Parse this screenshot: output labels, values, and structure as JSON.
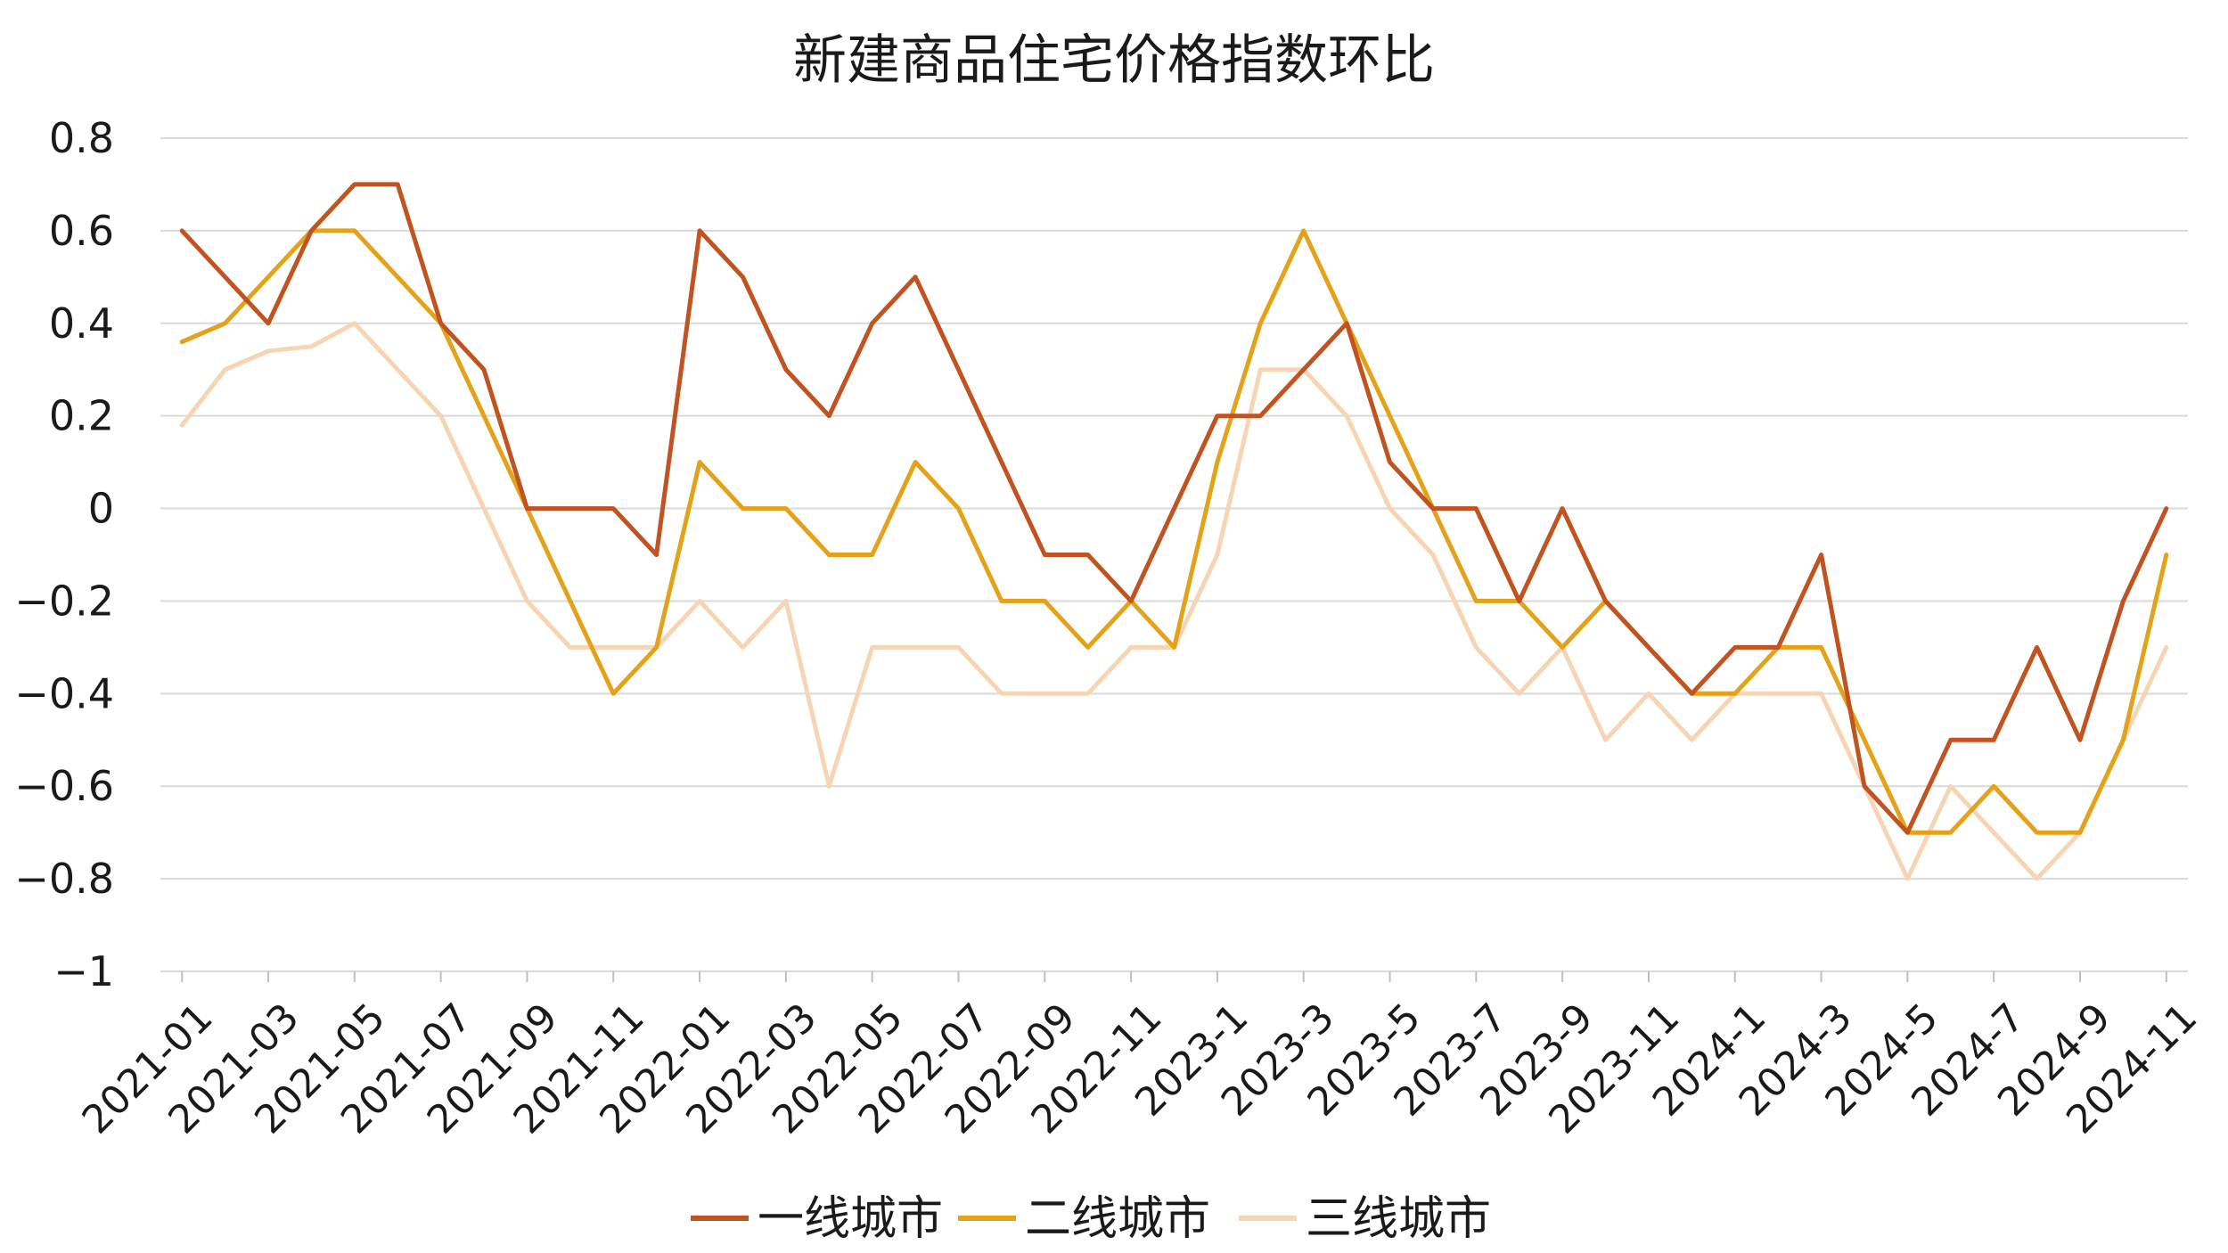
{
  "chart_data": {
    "type": "line",
    "title": "新建商品住宅价格指数环比",
    "xlabel": "",
    "ylabel": "",
    "ylim": [
      -1,
      0.8
    ],
    "yticks": [
      0.8,
      0.6,
      0.4,
      0.2,
      0,
      -0.2,
      -0.4,
      -0.6,
      -0.8,
      -1
    ],
    "ytick_labels": [
      "0.8",
      "0.6",
      "0.4",
      "0.2",
      "0",
      "−0.2",
      "−0.4",
      "−0.6",
      "−0.8",
      "−1"
    ],
    "grid": true,
    "legend_position": "bottom",
    "x": [
      "2021-01",
      "2021-02",
      "2021-03",
      "2021-04",
      "2021-05",
      "2021-06",
      "2021-07",
      "2021-08",
      "2021-09",
      "2021-10",
      "2021-11",
      "2021-12",
      "2022-01",
      "2022-02",
      "2022-03",
      "2022-04",
      "2022-05",
      "2022-06",
      "2022-07",
      "2022-08",
      "2022-09",
      "2022-10",
      "2022-11",
      "2022-12",
      "2023-1",
      "2023-2",
      "2023-3",
      "2023-4",
      "2023-5",
      "2023-6",
      "2023-7",
      "2023-8",
      "2023-9",
      "2023-10",
      "2023-11",
      "2023-12",
      "2024-1",
      "2024-2",
      "2024-3",
      "2024-4",
      "2024-5",
      "2024-6",
      "2024-7",
      "2024-8",
      "2024-9",
      "2024-10",
      "2024-11"
    ],
    "tick_labels": [
      "2021-01",
      "2021-03",
      "2021-05",
      "2021-07",
      "2021-09",
      "2021-11",
      "2022-01",
      "2022-03",
      "2022-05",
      "2022-07",
      "2022-09",
      "2022-11",
      "2023-1",
      "2023-3",
      "2023-5",
      "2023-7",
      "2023-9",
      "2023-11",
      "2024-1",
      "2024-3",
      "2024-5",
      "2024-7",
      "2024-9",
      "2024-11"
    ],
    "series": [
      {
        "name": "一线城市",
        "color": "#C0531F",
        "values": [
          0.6,
          0.5,
          0.4,
          0.6,
          0.7,
          0.7,
          0.4,
          0.3,
          0,
          0,
          0,
          -0.1,
          0.6,
          0.5,
          0.3,
          0.2,
          0.4,
          0.5,
          0.3,
          0.1,
          -0.1,
          -0.1,
          -0.2,
          0,
          0.2,
          0.2,
          0.3,
          0.4,
          0.1,
          0,
          0,
          -0.2,
          0,
          -0.2,
          -0.3,
          -0.4,
          -0.3,
          -0.3,
          -0.1,
          -0.6,
          -0.7,
          -0.5,
          -0.5,
          -0.3,
          -0.5,
          -0.2,
          0
        ]
      },
      {
        "name": "二线城市",
        "color": "#E3A21A",
        "values": [
          0.36,
          0.4,
          0.5,
          0.6,
          0.6,
          0.5,
          0.4,
          0.2,
          0,
          -0.2,
          -0.4,
          -0.3,
          0.1,
          0,
          0,
          -0.1,
          -0.1,
          0.1,
          0,
          -0.2,
          -0.2,
          -0.3,
          -0.2,
          -0.3,
          0.1,
          0.4,
          0.6,
          0.4,
          0.2,
          0,
          -0.2,
          -0.2,
          -0.3,
          -0.2,
          -0.3,
          -0.4,
          -0.4,
          -0.3,
          -0.3,
          -0.5,
          -0.7,
          -0.7,
          -0.6,
          -0.7,
          -0.7,
          -0.5,
          -0.1
        ]
      },
      {
        "name": "三线城市",
        "color": "#F6D5B5",
        "values": [
          0.18,
          0.3,
          0.34,
          0.35,
          0.4,
          0.3,
          0.2,
          0,
          -0.2,
          -0.3,
          -0.3,
          -0.3,
          -0.2,
          -0.3,
          -0.2,
          -0.6,
          -0.3,
          -0.3,
          -0.3,
          -0.4,
          -0.4,
          -0.4,
          -0.3,
          -0.3,
          -0.1,
          0.3,
          0.3,
          0.2,
          0,
          -0.1,
          -0.3,
          -0.4,
          -0.3,
          -0.5,
          -0.4,
          -0.5,
          -0.4,
          -0.4,
          -0.4,
          -0.6,
          -0.8,
          -0.6,
          -0.7,
          -0.8,
          -0.7,
          -0.5,
          -0.3
        ]
      }
    ]
  }
}
